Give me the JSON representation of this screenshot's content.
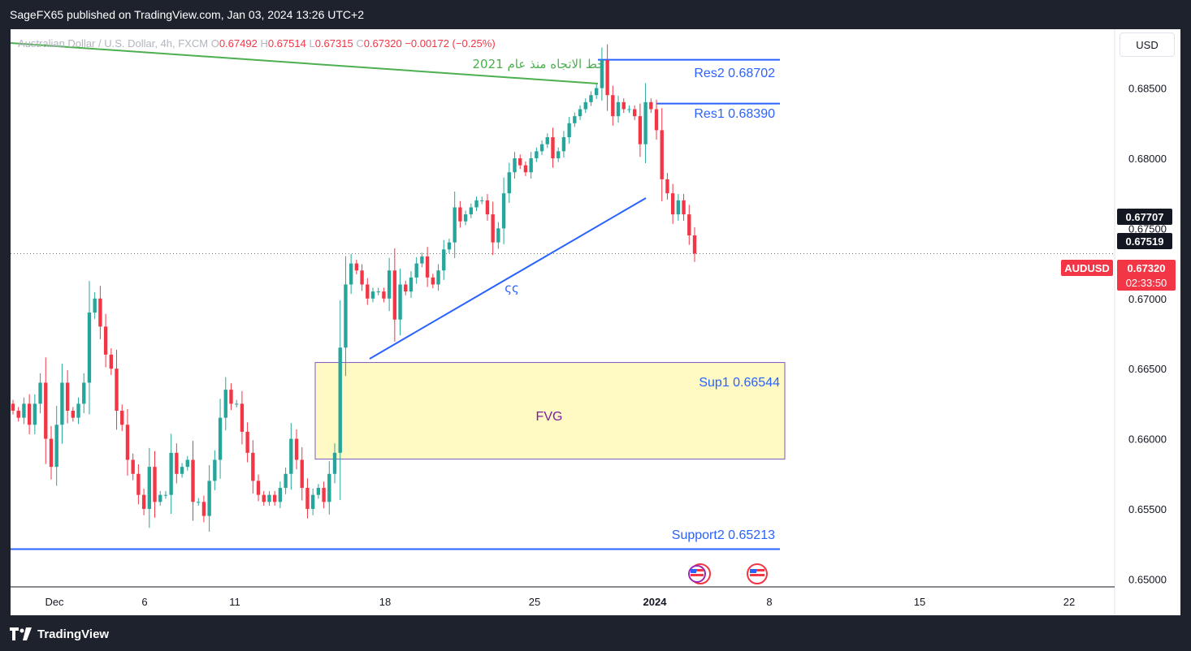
{
  "header": {
    "publisher_text": "SageFX65 published on TradingView.com, Jan 03, 2024 13:26 UTC+2"
  },
  "legend": {
    "symbol_text": "Australian Dollar / U.S. Dollar, 4h, FXCM",
    "o_label": "O",
    "o_value": "0.67492",
    "h_label": "H",
    "h_value": "0.67514",
    "l_label": "L",
    "l_value": "0.67315",
    "c_label": "C",
    "c_value": "0.67320",
    "change": "−0.00172 (−0.25%)"
  },
  "currency_button": "USD",
  "price_scale": {
    "ticks": [
      "0.68500",
      "0.68000",
      "0.67500",
      "0.67000",
      "0.66500",
      "0.66000",
      "0.65500",
      "0.65000"
    ]
  },
  "time_axis": {
    "ticks": [
      "Dec",
      "6",
      "11",
      "18",
      "25",
      "2024",
      "8",
      "15",
      "22"
    ]
  },
  "badges": {
    "price1": "0.67707",
    "price2": "0.67519",
    "symbol": "AUDUSD",
    "last_price": "0.67320",
    "countdown": "02:33:50"
  },
  "annotations": {
    "res2": "Res2 0.68702",
    "res1": "Res1 0.68390",
    "trendline_label": "خط الاتجاه منذ عام 2021",
    "trendline_small": "ςς",
    "fvg": "FVG",
    "sup1": "Sup1 0.66544",
    "support2": "Support2  0.65213"
  },
  "footer": {
    "brand": "TradingView"
  },
  "colors": {
    "up": "#26a69a",
    "down": "#f23645",
    "line_blue": "#2962ff",
    "line_green": "#4caf50",
    "fvg_fill": "#fff9c4",
    "fvg_border": "#7e57c2"
  },
  "chart_data": {
    "type": "candlestick",
    "symbol": "AUDUSD",
    "timeframe": "4h",
    "ylim": [
      0.6495,
      0.6892
    ],
    "x_ticks": [
      "Dec",
      "6",
      "11",
      "18",
      "25",
      "2024",
      "8",
      "15",
      "22"
    ],
    "levels": [
      {
        "label": "Res2",
        "value": 0.68702
      },
      {
        "label": "Res1",
        "value": 0.6839
      },
      {
        "label": "Sup1",
        "value": 0.66544
      },
      {
        "label": "Support2",
        "value": 0.65213
      }
    ],
    "fvg_zone": {
      "top": 0.66544,
      "bottom": 0.65855
    },
    "last_close": 0.6732,
    "closes": [
      0.662,
      0.6615,
      0.6625,
      0.661,
      0.6625,
      0.664,
      0.66,
      0.658,
      0.661,
      0.664,
      0.662,
      0.6615,
      0.6625,
      0.664,
      0.669,
      0.67,
      0.668,
      0.666,
      0.665,
      0.662,
      0.661,
      0.6585,
      0.6575,
      0.656,
      0.655,
      0.658,
      0.6555,
      0.656,
      0.656,
      0.659,
      0.6575,
      0.658,
      0.6585,
      0.6555,
      0.6555,
      0.6545,
      0.657,
      0.6585,
      0.6615,
      0.6635,
      0.6625,
      0.6625,
      0.6605,
      0.659,
      0.657,
      0.656,
      0.6555,
      0.656,
      0.6555,
      0.6565,
      0.6575,
      0.66,
      0.6585,
      0.6565,
      0.655,
      0.656,
      0.6565,
      0.6555,
      0.6575,
      0.659,
      0.6665,
      0.671,
      0.6725,
      0.672,
      0.671,
      0.67,
      0.6705,
      0.6705,
      0.67,
      0.672,
      0.6685,
      0.671,
      0.6705,
      0.6715,
      0.6725,
      0.673,
      0.6715,
      0.671,
      0.672,
      0.6735,
      0.674,
      0.6765,
      0.6755,
      0.676,
      0.6765,
      0.677,
      0.677,
      0.676,
      0.674,
      0.675,
      0.6775,
      0.679,
      0.68,
      0.6795,
      0.679,
      0.68,
      0.6805,
      0.681,
      0.6815,
      0.68,
      0.6805,
      0.6815,
      0.6825,
      0.683,
      0.6835,
      0.684,
      0.6845,
      0.685,
      0.687,
      0.6845,
      0.683,
      0.684,
      0.6835,
      0.6835,
      0.683,
      0.681,
      0.684,
      0.6835,
      0.682,
      0.6785,
      0.6775,
      0.676,
      0.677,
      0.676,
      0.6745,
      0.6732
    ]
  }
}
